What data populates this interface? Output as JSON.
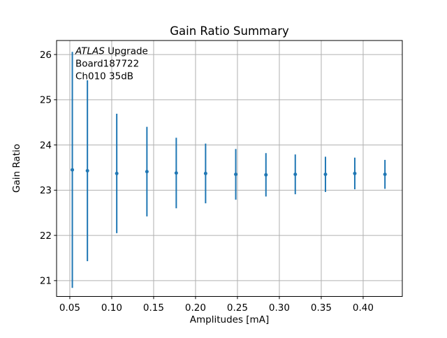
{
  "figure": {
    "annotation": {
      "line1_italic": "ATLAS",
      "line1_rest": " Upgrade",
      "line2": "Board187722",
      "line3": "Ch010 35dB"
    }
  },
  "chart_data": {
    "type": "scatter",
    "subtype": "errorbar-vertical-no-caps",
    "title": "Gain Ratio Summary",
    "xlabel": "Amplitudes [mA]",
    "ylabel": "Gain Ratio",
    "x": [
      0.053,
      0.071,
      0.106,
      0.142,
      0.177,
      0.212,
      0.248,
      0.284,
      0.319,
      0.355,
      0.39,
      0.426
    ],
    "y": [
      23.45,
      23.43,
      23.37,
      23.41,
      23.38,
      23.37,
      23.35,
      23.34,
      23.35,
      23.35,
      23.37,
      23.35
    ],
    "yerr": [
      2.61,
      2.0,
      1.32,
      0.99,
      0.78,
      0.66,
      0.56,
      0.48,
      0.44,
      0.39,
      0.35,
      0.32
    ],
    "xlim": [
      0.0342,
      0.4467
    ],
    "ylim": [
      20.65,
      26.31
    ],
    "xticks": [
      0.05,
      0.1,
      0.15,
      0.2,
      0.25,
      0.3,
      0.35,
      0.4
    ],
    "xtick_labels": [
      "0.05",
      "0.10",
      "0.15",
      "0.20",
      "0.25",
      "0.30",
      "0.35",
      "0.40"
    ],
    "yticks": [
      21,
      22,
      23,
      24,
      25,
      26
    ],
    "ytick_labels": [
      "21",
      "22",
      "23",
      "24",
      "25",
      "26"
    ],
    "grid": true,
    "legend": false,
    "colors": {
      "series": "#1f77b4",
      "grid": "#b0b0b0",
      "spine": "#000000",
      "text": "#000000",
      "background": "#ffffff"
    }
  }
}
